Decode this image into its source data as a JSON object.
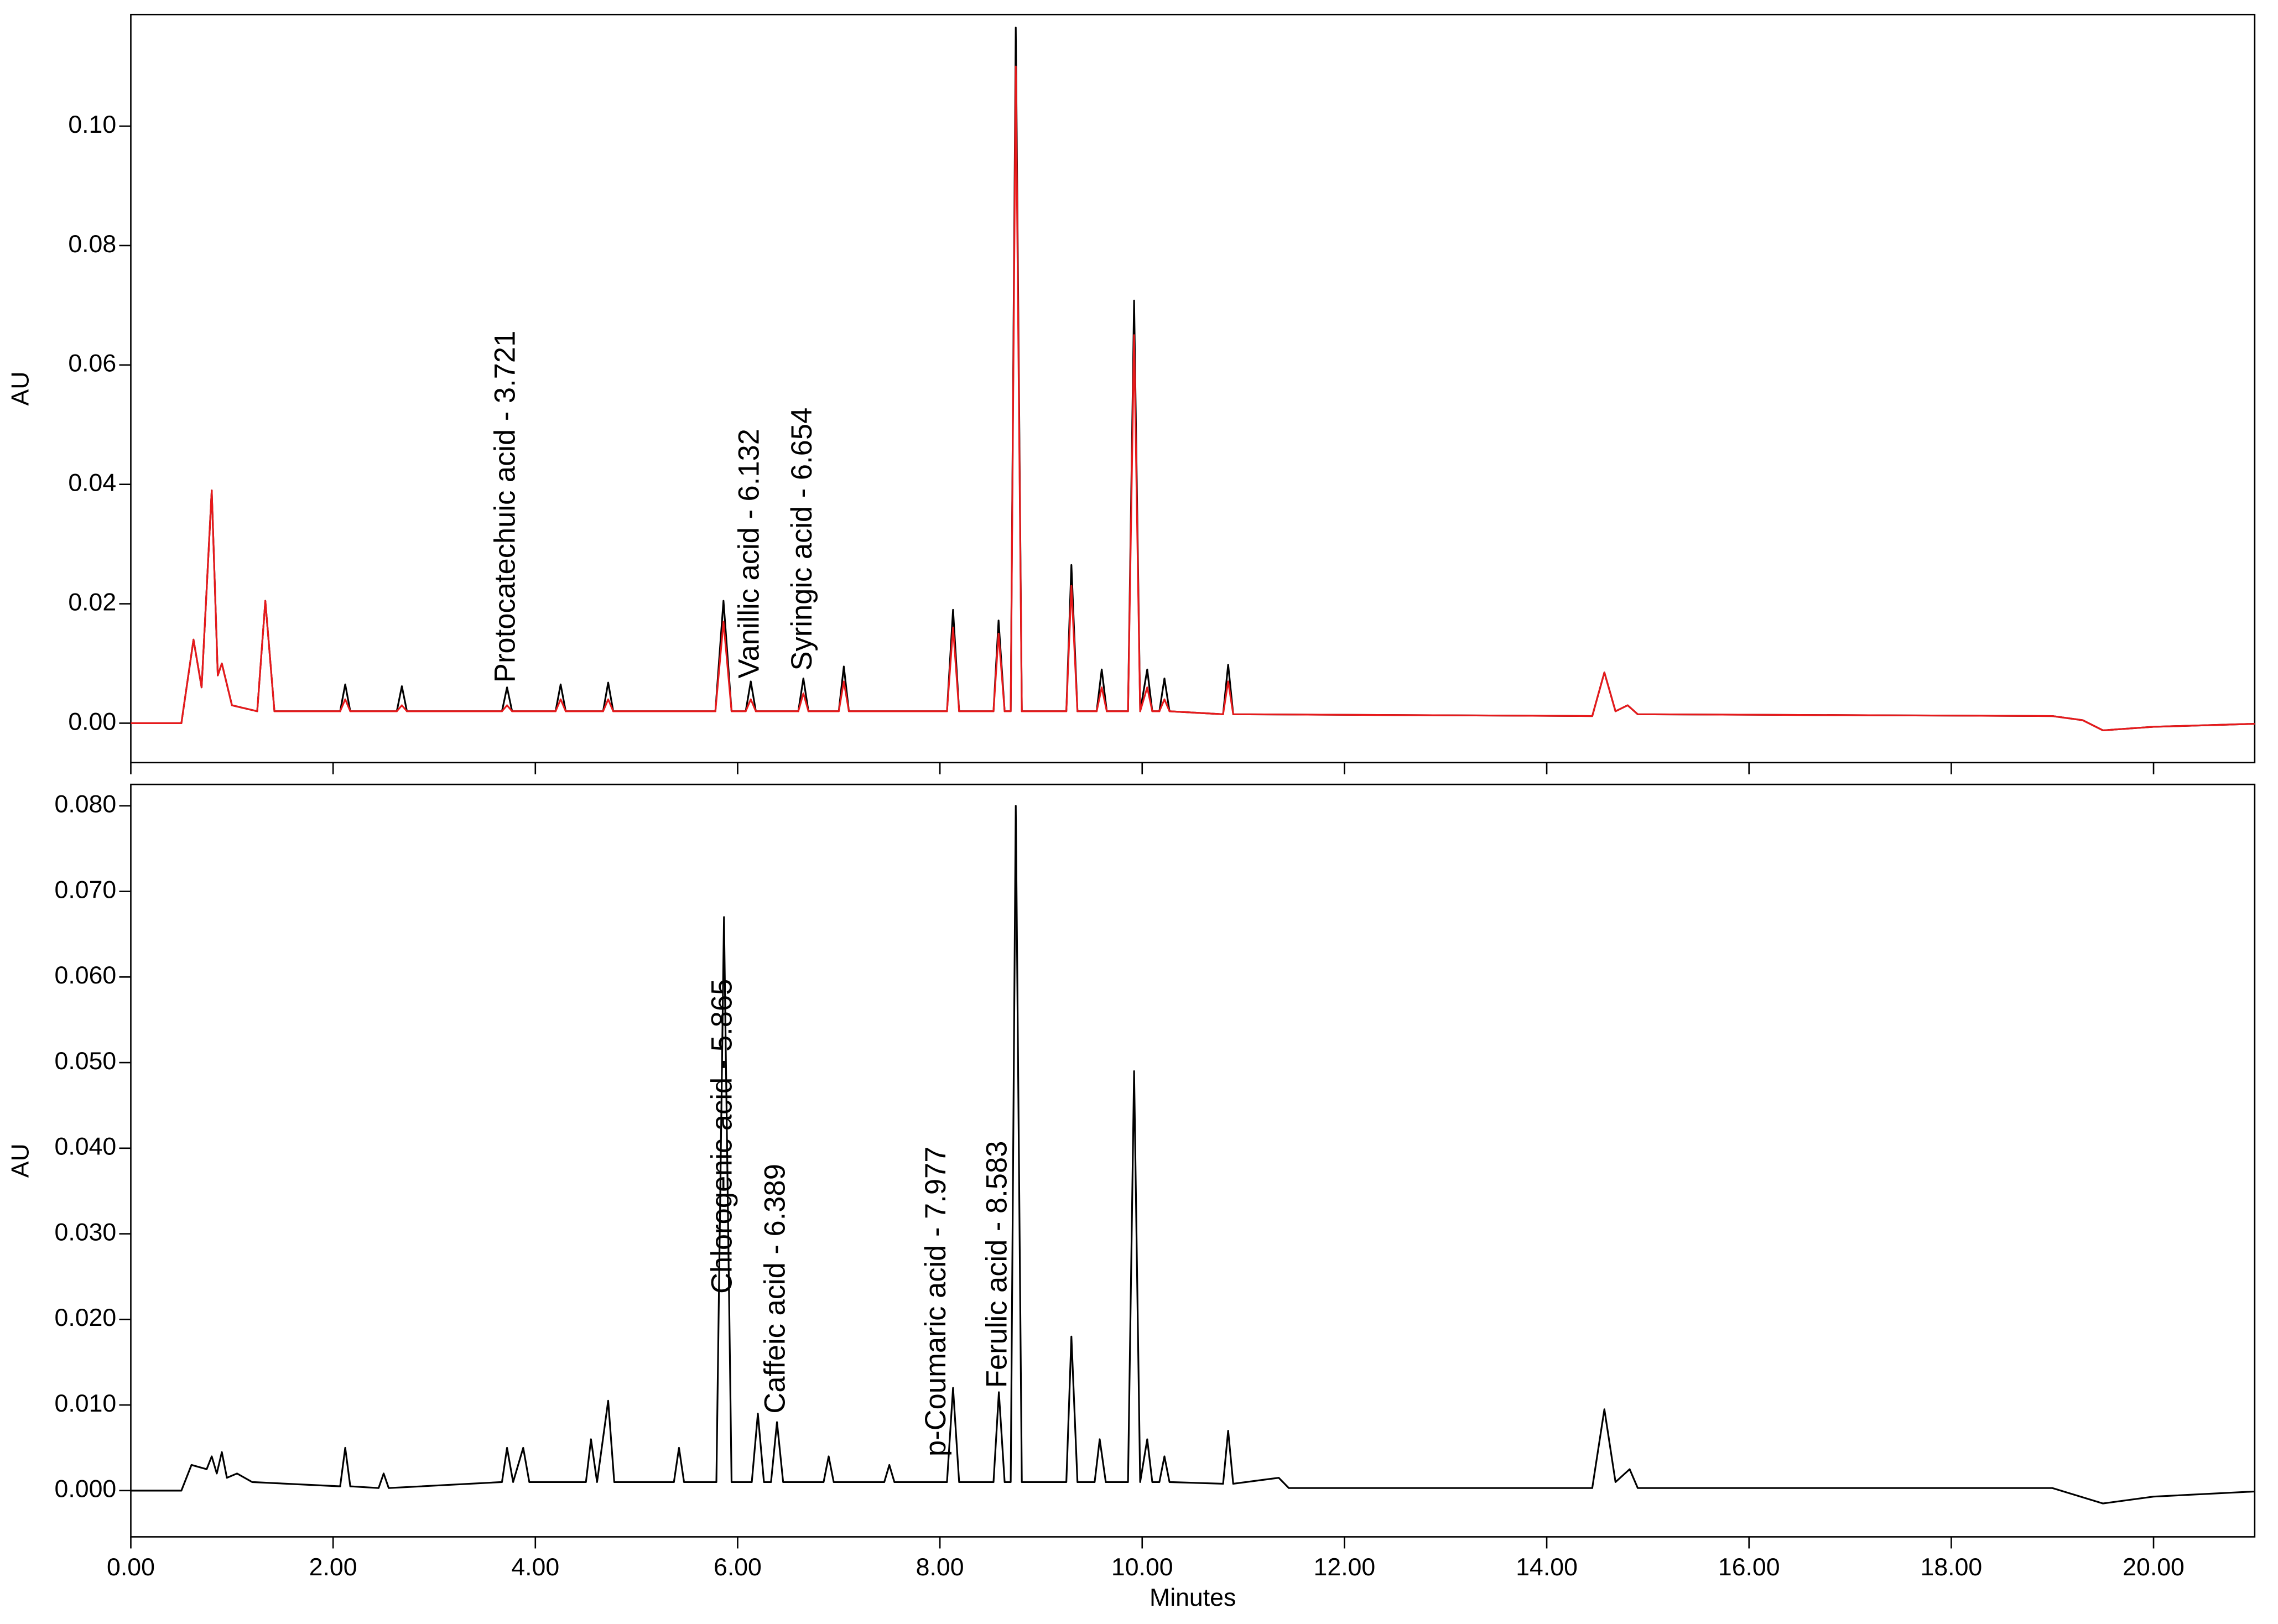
{
  "chart_data": [
    {
      "type": "line",
      "ylabel": "AU",
      "xlim": [
        0,
        21
      ],
      "ylim": [
        -0.0066,
        0.1187
      ],
      "xticks": [
        0,
        2,
        4,
        6,
        8,
        10,
        12,
        14,
        16,
        18,
        20
      ],
      "yticks": [
        {
          "value": 0,
          "label": "0.00"
        },
        {
          "value": 0.02,
          "label": "0.02"
        },
        {
          "value": 0.04,
          "label": "0.04"
        },
        {
          "value": 0.06,
          "label": "0.06"
        },
        {
          "value": 0.08,
          "label": "0.08"
        },
        {
          "value": 0.1,
          "label": "0.10"
        }
      ],
      "x": [
        0,
        0.5,
        0.62,
        0.7,
        0.8,
        0.86,
        0.9,
        1.0,
        1.25,
        1.33,
        1.42,
        2.07,
        2.12,
        2.17,
        2.63,
        2.68,
        2.73,
        3.67,
        3.72,
        3.77,
        4.2,
        4.25,
        4.3,
        4.67,
        4.72,
        4.77,
        5.78,
        5.86,
        5.94,
        6.08,
        6.13,
        6.18,
        6.6,
        6.65,
        6.7,
        7.0,
        7.05,
        7.1,
        8.07,
        8.13,
        8.19,
        8.53,
        8.58,
        8.64,
        8.7,
        8.75,
        8.81,
        9.25,
        9.3,
        9.36,
        9.55,
        9.6,
        9.65,
        9.86,
        9.92,
        9.98,
        10.05,
        10.1,
        10.17,
        10.22,
        10.27,
        10.8,
        10.85,
        10.9,
        14.45,
        14.57,
        14.68,
        14.8,
        14.9,
        19.0,
        19.3,
        19.5,
        20.0,
        21
      ],
      "series": [
        {
          "color": "#000000",
          "values": [
            0,
            0,
            0.014,
            0.006,
            0.039,
            0.008,
            0.01,
            0.003,
            0.002,
            0.0205,
            0.002,
            0.002,
            0.0065,
            0.002,
            0.002,
            0.0062,
            0.002,
            0.002,
            0.006,
            0.002,
            0.002,
            0.0065,
            0.002,
            0.002,
            0.0068,
            0.002,
            0.002,
            0.0205,
            0.002,
            0.002,
            0.007,
            0.002,
            0.002,
            0.0075,
            0.002,
            0.002,
            0.0095,
            0.002,
            0.002,
            0.019,
            0.002,
            0.002,
            0.0172,
            0.002,
            0.002,
            0.1165,
            0.002,
            0.002,
            0.0265,
            0.002,
            0.002,
            0.009,
            0.002,
            0.002,
            0.0708,
            0.002,
            0.009,
            0.002,
            0.002,
            0.0075,
            0.002,
            0.0015,
            0.0098,
            0.0015,
            0.0012,
            0.0085,
            0.002,
            0.003,
            0.0015,
            0.0012,
            0.0005,
            -0.0012,
            -0.0006,
            -0.0001
          ]
        },
        {
          "color": "#e8191b",
          "values": [
            0,
            0,
            0.014,
            0.006,
            0.039,
            0.008,
            0.01,
            0.003,
            0.002,
            0.0205,
            0.002,
            0.002,
            0.004,
            0.002,
            0.002,
            0.003,
            0.002,
            0.002,
            0.003,
            0.002,
            0.002,
            0.004,
            0.002,
            0.002,
            0.004,
            0.002,
            0.002,
            0.017,
            0.002,
            0.002,
            0.004,
            0.002,
            0.002,
            0.005,
            0.002,
            0.002,
            0.007,
            0.002,
            0.002,
            0.016,
            0.002,
            0.002,
            0.015,
            0.002,
            0.002,
            0.11,
            0.002,
            0.002,
            0.023,
            0.002,
            0.002,
            0.006,
            0.002,
            0.002,
            0.065,
            0.002,
            0.006,
            0.002,
            0.002,
            0.004,
            0.002,
            0.0015,
            0.007,
            0.0015,
            0.0012,
            0.0085,
            0.002,
            0.003,
            0.0015,
            0.0012,
            0.0005,
            -0.0012,
            -0.0006,
            -0.0001
          ]
        }
      ],
      "annotations": [
        {
          "text": "Protocatechuic acid - 3.721",
          "x": 3.721,
          "y": 0.0068
        },
        {
          "text": "Vanillic acid - 6.132",
          "x": 6.132,
          "y": 0.0075
        },
        {
          "text": "Syringic acid - 6.654",
          "x": 6.654,
          "y": 0.0088
        }
      ]
    },
    {
      "type": "line",
      "ylabel": "AU",
      "xlabel": "Minutes",
      "xlim": [
        0,
        21
      ],
      "ylim": [
        -0.0054,
        0.0825
      ],
      "xticks": [
        {
          "value": 0,
          "label": "0.00"
        },
        {
          "value": 2,
          "label": "2.00"
        },
        {
          "value": 4,
          "label": "4.00"
        },
        {
          "value": 6,
          "label": "6.00"
        },
        {
          "value": 8,
          "label": "8.00"
        },
        {
          "value": 10,
          "label": "10.00"
        },
        {
          "value": 12,
          "label": "12.00"
        },
        {
          "value": 14,
          "label": "14.00"
        },
        {
          "value": 16,
          "label": "16.00"
        },
        {
          "value": 18,
          "label": "18.00"
        },
        {
          "value": 20,
          "label": "20.00"
        }
      ],
      "yticks": [
        {
          "value": 0,
          "label": "0.000"
        },
        {
          "value": 0.01,
          "label": "0.010"
        },
        {
          "value": 0.02,
          "label": "0.020"
        },
        {
          "value": 0.03,
          "label": "0.030"
        },
        {
          "value": 0.04,
          "label": "0.040"
        },
        {
          "value": 0.05,
          "label": "0.050"
        },
        {
          "value": 0.06,
          "label": "0.060"
        },
        {
          "value": 0.07,
          "label": "0.070"
        },
        {
          "value": 0.08,
          "label": "0.080"
        }
      ],
      "x": [
        0,
        0.5,
        0.6,
        0.75,
        0.8,
        0.85,
        0.9,
        0.95,
        1.05,
        1.2,
        2.07,
        2.12,
        2.17,
        2.45,
        2.5,
        2.55,
        3.67,
        3.72,
        3.78,
        3.88,
        3.94,
        4.5,
        4.55,
        4.61,
        4.72,
        4.78,
        5.37,
        5.42,
        5.47,
        5.79,
        5.865,
        5.94,
        6.14,
        6.2,
        6.26,
        6.33,
        6.389,
        6.45,
        6.85,
        6.9,
        6.95,
        7.45,
        7.5,
        7.55,
        8.07,
        8.13,
        8.19,
        8.53,
        8.583,
        8.64,
        8.7,
        8.75,
        8.81,
        9.25,
        9.3,
        9.36,
        9.53,
        9.58,
        9.64,
        9.86,
        9.92,
        9.98,
        10.05,
        10.1,
        10.17,
        10.22,
        10.27,
        10.8,
        10.85,
        10.9,
        11.35,
        11.45,
        14.45,
        14.57,
        14.68,
        14.82,
        14.9,
        19.0,
        19.5,
        20.0,
        21
      ],
      "series": [
        {
          "color": "#000000",
          "values": [
            0,
            0,
            0.003,
            0.0025,
            0.004,
            0.002,
            0.0045,
            0.0015,
            0.002,
            0.001,
            0.0005,
            0.005,
            0.0005,
            0.0003,
            0.002,
            0.0003,
            0.001,
            0.005,
            0.001,
            0.005,
            0.001,
            0.001,
            0.006,
            0.001,
            0.0105,
            0.001,
            0.001,
            0.005,
            0.001,
            0.001,
            0.067,
            0.001,
            0.001,
            0.009,
            0.001,
            0.001,
            0.008,
            0.001,
            0.001,
            0.004,
            0.001,
            0.001,
            0.003,
            0.001,
            0.001,
            0.012,
            0.001,
            0.001,
            0.0115,
            0.001,
            0.001,
            0.08,
            0.001,
            0.001,
            0.018,
            0.001,
            0.001,
            0.006,
            0.001,
            0.001,
            0.049,
            0.001,
            0.006,
            0.001,
            0.001,
            0.004,
            0.001,
            0.0008,
            0.007,
            0.0008,
            0.0015,
            0.0003,
            0.0003,
            0.0095,
            0.001,
            0.0025,
            0.0003,
            0.0003,
            -0.0015,
            -0.0007,
            -0.0001
          ]
        }
      ],
      "annotations": [
        {
          "text": "Chlorogenic acid - 5.865",
          "x": 5.865,
          "y": 0.023
        },
        {
          "text": "Caffeic acid - 6.389",
          "x": 6.389,
          "y": 0.009
        },
        {
          "text": "p-Coumaric acid - 7.977",
          "x": 7.977,
          "y": 0.004
        },
        {
          "text": "Ferulic acid - 8.583",
          "x": 8.583,
          "y": 0.012
        }
      ]
    }
  ]
}
